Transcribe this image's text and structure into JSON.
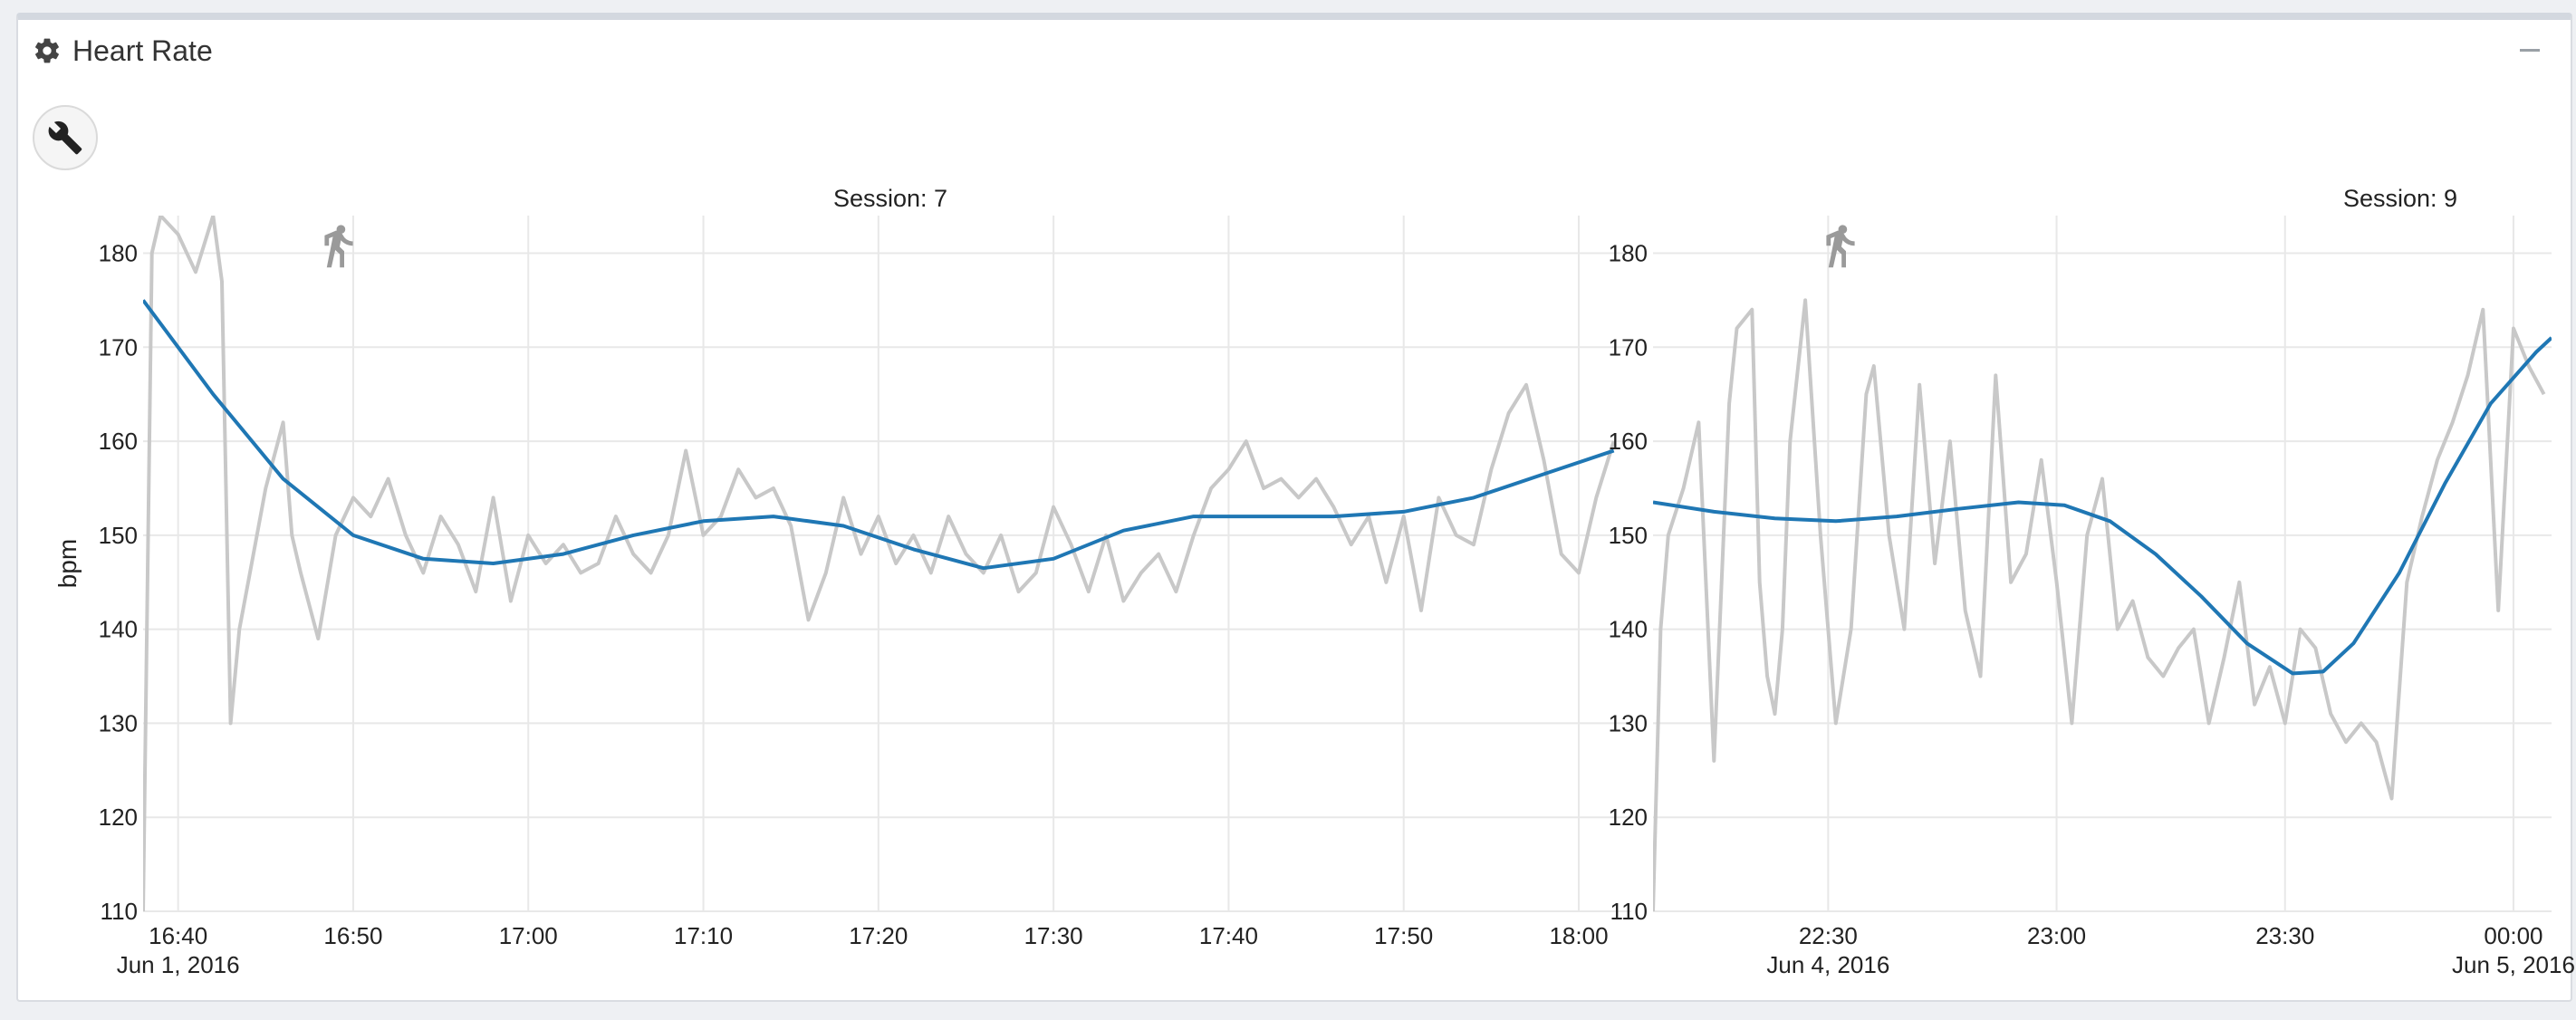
{
  "panel": {
    "title": "Heart Rate",
    "title_icon": "gear-icon",
    "minimize_icon": "minus-icon",
    "tool_button_icon": "wrench-icon"
  },
  "colors": {
    "raw_line": "#c8c8c8",
    "smooth_line": "#1f77b4",
    "grid": "#e8e8e8",
    "activity_icon": "#9a9a9a"
  },
  "chart_data": [
    {
      "type": "line",
      "title": "Session: 7",
      "activity_icon": "running-person-icon",
      "ylabel": "bpm",
      "ylim": [
        110,
        184
      ],
      "yticks": [
        110,
        120,
        130,
        140,
        150,
        160,
        170,
        180
      ],
      "grid": true,
      "xlim": [
        "16:38",
        "18:03"
      ],
      "xticks": [
        {
          "t": "16:40",
          "label": "16:40",
          "sublabel": "Jun 1, 2016"
        },
        {
          "t": "16:50",
          "label": "16:50"
        },
        {
          "t": "17:00",
          "label": "17:00"
        },
        {
          "t": "17:10",
          "label": "17:10"
        },
        {
          "t": "17:20",
          "label": "17:20"
        },
        {
          "t": "17:30",
          "label": "17:30"
        },
        {
          "t": "17:40",
          "label": "17:40"
        },
        {
          "t": "17:50",
          "label": "17:50"
        },
        {
          "t": "18:00",
          "label": "18:00"
        }
      ],
      "series": [
        {
          "style": "raw",
          "x": [
            "16:38",
            "16:38.5",
            "16:39",
            "16:40",
            "16:41",
            "16:42",
            "16:42.5",
            "16:43",
            "16:43.5",
            "16:44",
            "16:45",
            "16:46",
            "16:46.5",
            "16:47",
            "16:48",
            "16:49",
            "16:50",
            "16:51",
            "16:52",
            "16:53",
            "16:54",
            "16:55",
            "16:56",
            "16:57",
            "16:58",
            "16:59",
            "17:00",
            "17:01",
            "17:02",
            "17:03",
            "17:04",
            "17:05",
            "17:06",
            "17:07",
            "17:08",
            "17:09",
            "17:10",
            "17:11",
            "17:12",
            "17:13",
            "17:14",
            "17:15",
            "17:16",
            "17:17",
            "17:18",
            "17:19",
            "17:20",
            "17:21",
            "17:22",
            "17:23",
            "17:24",
            "17:25",
            "17:26",
            "17:27",
            "17:28",
            "17:29",
            "17:30",
            "17:31",
            "17:32",
            "17:33",
            "17:34",
            "17:35",
            "17:36",
            "17:37",
            "17:38",
            "17:39",
            "17:40",
            "17:41",
            "17:42",
            "17:43",
            "17:44",
            "17:45",
            "17:46",
            "17:47",
            "17:48",
            "17:49",
            "17:50",
            "17:51",
            "17:52",
            "17:53",
            "17:54",
            "17:55",
            "17:56",
            "17:57",
            "17:58",
            "17:59",
            "18:00",
            "18:01",
            "18:02"
          ],
          "y": [
            110,
            180,
            184,
            182,
            178,
            184,
            177,
            130,
            140,
            145,
            155,
            162,
            150,
            146,
            139,
            150,
            154,
            152,
            156,
            150,
            146,
            152,
            149,
            144,
            154,
            143,
            150,
            147,
            149,
            146,
            147,
            152,
            148,
            146,
            150,
            159,
            150,
            152,
            157,
            154,
            155,
            151,
            141,
            146,
            154,
            148,
            152,
            147,
            150,
            146,
            152,
            148,
            146,
            150,
            144,
            146,
            153,
            149,
            144,
            150,
            143,
            146,
            148,
            144,
            150,
            155,
            157,
            160,
            155,
            156,
            154,
            156,
            153,
            149,
            152,
            145,
            152,
            142,
            154,
            150,
            149,
            157,
            163,
            166,
            158,
            148,
            146,
            154,
            160
          ]
        },
        {
          "style": "smooth",
          "x": [
            "16:38",
            "16:42",
            "16:46",
            "16:50",
            "16:54",
            "16:58",
            "17:02",
            "17:06",
            "17:10",
            "17:14",
            "17:18",
            "17:22",
            "17:26",
            "17:30",
            "17:34",
            "17:38",
            "17:42",
            "17:46",
            "17:50",
            "17:54",
            "17:58",
            "18:02"
          ],
          "y": [
            175,
            165,
            156,
            150,
            147.5,
            147,
            148,
            150,
            151.5,
            152,
            151,
            148.5,
            146.5,
            147.5,
            150.5,
            152,
            152,
            152,
            152.5,
            154,
            156.5,
            159
          ]
        }
      ]
    },
    {
      "type": "line",
      "title": "Session: 9",
      "activity_icon": "running-person-icon",
      "ylim": [
        110,
        184
      ],
      "yticks": [
        110,
        120,
        130,
        140,
        150,
        160,
        170,
        180
      ],
      "grid": true,
      "xlim": [
        "22:07",
        "00:05"
      ],
      "xticks": [
        {
          "t": "22:30",
          "label": "22:30",
          "sublabel": "Jun 4, 2016"
        },
        {
          "t": "23:00",
          "label": "23:00"
        },
        {
          "t": "23:30",
          "label": "23:30"
        },
        {
          "t": "00:00",
          "label": "00:00",
          "sublabel": "Jun 5, 2016"
        }
      ],
      "series": [
        {
          "style": "raw",
          "x": [
            "22:07",
            "22:08",
            "22:09",
            "22:11",
            "22:13",
            "22:15",
            "22:17",
            "22:18",
            "22:20",
            "22:21",
            "22:22",
            "22:23",
            "22:24",
            "22:25",
            "22:27",
            "22:29",
            "22:31",
            "22:33",
            "22:35",
            "22:36",
            "22:38",
            "22:40",
            "22:42",
            "22:44",
            "22:46",
            "22:48",
            "22:50",
            "22:52",
            "22:54",
            "22:56",
            "22:58",
            "23:00",
            "23:02",
            "23:04",
            "23:06",
            "23:08",
            "23:10",
            "23:12",
            "23:14",
            "23:16",
            "23:18",
            "23:20",
            "23:22",
            "23:24",
            "23:26",
            "23:28",
            "23:30",
            "23:32",
            "23:34",
            "23:36",
            "23:38",
            "23:40",
            "23:42",
            "23:44",
            "23:46",
            "23:48",
            "23:50",
            "23:52",
            "23:54",
            "23:56",
            "23:58",
            "00:00",
            "00:02",
            "00:04"
          ],
          "y": [
            110,
            140,
            150,
            155,
            162,
            126,
            164,
            172,
            174,
            145,
            135,
            131,
            140,
            160,
            175,
            150,
            130,
            140,
            165,
            168,
            150,
            140,
            166,
            147,
            160,
            142,
            135,
            167,
            145,
            148,
            158,
            145,
            130,
            150,
            156,
            140,
            143,
            137,
            135,
            138,
            140,
            130,
            137,
            145,
            132,
            136,
            130,
            140,
            138,
            131,
            128,
            130,
            128,
            122,
            145,
            152,
            158,
            162,
            167,
            174,
            142,
            172,
            168,
            165
          ]
        },
        {
          "style": "smooth",
          "x": [
            "22:07",
            "22:15",
            "22:23",
            "22:31",
            "22:39",
            "22:47",
            "22:55",
            "23:01",
            "23:07",
            "23:13",
            "23:19",
            "23:25",
            "23:31",
            "23:35",
            "23:39",
            "23:45",
            "23:51",
            "23:57",
            "00:03",
            "00:05"
          ],
          "y": [
            153.5,
            152.5,
            151.8,
            151.5,
            152,
            152.8,
            153.5,
            153.2,
            151.5,
            148,
            143.5,
            138.5,
            135.3,
            135.5,
            138.5,
            146,
            155.5,
            164,
            169.5,
            171
          ]
        }
      ]
    }
  ]
}
